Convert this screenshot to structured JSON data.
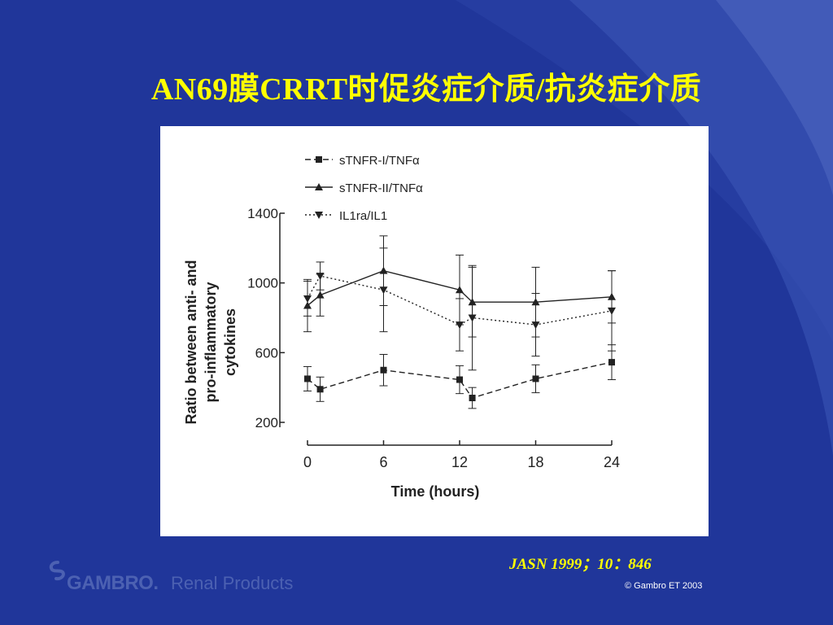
{
  "slide": {
    "title": "AN69膜CRRT时促炎症介质/抗炎症介质",
    "citation": "JASN 1999；10：846",
    "copyright": "© Gambro ET 2003",
    "logo_brand": "GAMBRO.",
    "logo_sub": "Renal Products",
    "colors": {
      "background": "#20369a",
      "title": "#ffff00",
      "panel": "#ffffff",
      "ink": "#222222"
    }
  },
  "chart_data": {
    "type": "line",
    "xlabel": "Time (hours)",
    "ylabel_line1": "Ratio between anti- and",
    "ylabel_line2": "pro-inflammatory",
    "ylabel_line3": "cytokines",
    "xlim": [
      0,
      24
    ],
    "ylim": [
      200,
      1400
    ],
    "x_ticks": [
      "0",
      "6",
      "12",
      "18",
      "24"
    ],
    "y_ticks": [
      "1400",
      "1000",
      "600",
      "200"
    ],
    "grid": false,
    "legend_position": "top-left",
    "series": [
      {
        "name": "sTNFR-I/TNFα",
        "marker": "square",
        "line": "dash",
        "x": [
          0,
          1,
          6,
          12,
          13,
          18,
          24
        ],
        "y": [
          450,
          390,
          500,
          445,
          340,
          450,
          545
        ],
        "err": [
          70,
          70,
          90,
          80,
          60,
          80,
          100
        ]
      },
      {
        "name": "sTNFR-II/TNFα",
        "marker": "triangle-up",
        "line": "solid",
        "x": [
          0,
          1,
          6,
          12,
          13,
          18,
          24
        ],
        "y": [
          870,
          930,
          1070,
          960,
          890,
          890,
          920
        ],
        "err": [
          150,
          120,
          200,
          200,
          200,
          200,
          150
        ]
      },
      {
        "name": "IL1ra/IL1",
        "marker": "triangle-down",
        "line": "dot",
        "x": [
          0,
          1,
          6,
          12,
          13,
          18,
          24
        ],
        "y": [
          910,
          1040,
          960,
          760,
          800,
          760,
          840
        ],
        "err": [
          100,
          80,
          240,
          150,
          300,
          180,
          230
        ]
      }
    ]
  }
}
